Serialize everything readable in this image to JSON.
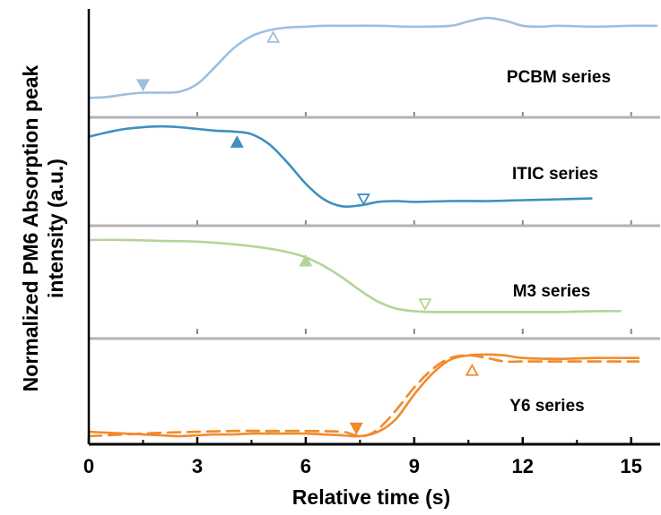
{
  "chart_data": {
    "type": "line",
    "xlabel": "Relative time (s)",
    "ylabel_lines": [
      "Normalized PM6 Absorption peak",
      "intensity (a.u.)"
    ],
    "xlim": [
      0,
      15.8
    ],
    "ylim": [
      0,
      1
    ],
    "x_ticks": [
      0,
      3,
      6,
      9,
      12,
      15
    ],
    "grid": false,
    "panels": [
      {
        "label": "PCBM series",
        "color": "#9dbfe0",
        "series": [
          {
            "style": "solid",
            "x": [
              0,
              0.5,
              1,
              1.5,
              2,
              2.5,
              3,
              3.5,
              4,
              4.5,
              5,
              5.5,
              6,
              6.5,
              7,
              8,
              9,
              10,
              10.5,
              11,
              11.5,
              12,
              12.5,
              13,
              14,
              15,
              15.7
            ],
            "y": [
              0.1,
              0.11,
              0.14,
              0.16,
              0.16,
              0.17,
              0.26,
              0.46,
              0.67,
              0.81,
              0.88,
              0.91,
              0.92,
              0.93,
              0.93,
              0.93,
              0.92,
              0.93,
              0.98,
              1.02,
              0.99,
              0.93,
              0.92,
              0.93,
              0.92,
              0.93,
              0.93
            ]
          }
        ],
        "markers": [
          {
            "x": 1.5,
            "y": 0.25,
            "shape": "down",
            "filled": true
          },
          {
            "x": 5.1,
            "y": 0.8,
            "shape": "up",
            "filled": false
          }
        ]
      },
      {
        "label": "ITIC series",
        "color": "#3f8fbf",
        "series": [
          {
            "style": "solid",
            "x": [
              0,
              0.5,
              1,
              1.5,
              2,
              2.5,
              3,
              3.5,
              4,
              4.5,
              5,
              5.5,
              6,
              6.5,
              7,
              7.5,
              8,
              8.5,
              9,
              10,
              11,
              12,
              13,
              13.9
            ],
            "y": [
              0.9,
              0.95,
              0.99,
              1.01,
              1.02,
              1.01,
              0.99,
              0.97,
              0.96,
              0.93,
              0.81,
              0.6,
              0.36,
              0.18,
              0.1,
              0.11,
              0.15,
              0.16,
              0.15,
              0.16,
              0.16,
              0.17,
              0.18,
              0.19
            ]
          }
        ],
        "markers": [
          {
            "x": 4.1,
            "y": 0.84,
            "shape": "up",
            "filled": true
          },
          {
            "x": 7.6,
            "y": 0.18,
            "shape": "down",
            "filled": false
          }
        ]
      },
      {
        "label": "M3 series",
        "color": "#b5d396",
        "series": [
          {
            "style": "solid",
            "x": [
              0,
              1,
              2,
              3,
              4,
              5,
              5.5,
              6,
              6.5,
              7,
              7.5,
              8,
              8.5,
              9,
              9.5,
              10,
              11,
              12,
              13,
              14,
              14.7
            ],
            "y": [
              0.96,
              0.96,
              0.95,
              0.94,
              0.91,
              0.86,
              0.82,
              0.76,
              0.66,
              0.53,
              0.38,
              0.25,
              0.17,
              0.14,
              0.13,
              0.13,
              0.13,
              0.13,
              0.13,
              0.14,
              0.14
            ]
          }
        ],
        "markers": [
          {
            "x": 6.0,
            "y": 0.72,
            "shape": "up",
            "filled": true
          },
          {
            "x": 9.3,
            "y": 0.22,
            "shape": "down",
            "filled": false
          }
        ]
      },
      {
        "label": "Y6 series",
        "color": "#f28a2a",
        "series": [
          {
            "style": "solid",
            "x": [
              0,
              0.5,
              1,
              1.5,
              2,
              2.5,
              3,
              3.5,
              4,
              4.5,
              5,
              5.5,
              6,
              6.5,
              7,
              7.5,
              8,
              8.5,
              9,
              9.5,
              10,
              10.5,
              11,
              11.5,
              12,
              13,
              14,
              15.2
            ],
            "y": [
              0.05,
              0.04,
              0.03,
              0.02,
              0.01,
              0.0,
              0.01,
              0.02,
              0.02,
              0.03,
              0.03,
              0.03,
              0.03,
              0.02,
              0.01,
              0.0,
              0.05,
              0.2,
              0.48,
              0.72,
              0.88,
              0.93,
              0.94,
              0.93,
              0.9,
              0.89,
              0.9,
              0.9
            ]
          },
          {
            "style": "dashed",
            "x": [
              0,
              0.5,
              1,
              2,
              3,
              4,
              5,
              6,
              7,
              7.3,
              7.6,
              8,
              8.5,
              9,
              9.5,
              10,
              10.5,
              11,
              11.5,
              12,
              13,
              14,
              15.2
            ],
            "y": [
              0.0,
              0.01,
              0.02,
              0.04,
              0.05,
              0.06,
              0.06,
              0.06,
              0.05,
              0.02,
              0.0,
              0.08,
              0.3,
              0.56,
              0.77,
              0.9,
              0.93,
              0.9,
              0.86,
              0.86,
              0.86,
              0.86,
              0.86
            ]
          }
        ],
        "markers": [
          {
            "x": 7.4,
            "y": 0.09,
            "shape": "down",
            "filled": true
          },
          {
            "x": 10.6,
            "y": 0.76,
            "shape": "up",
            "filled": false
          }
        ]
      }
    ]
  }
}
